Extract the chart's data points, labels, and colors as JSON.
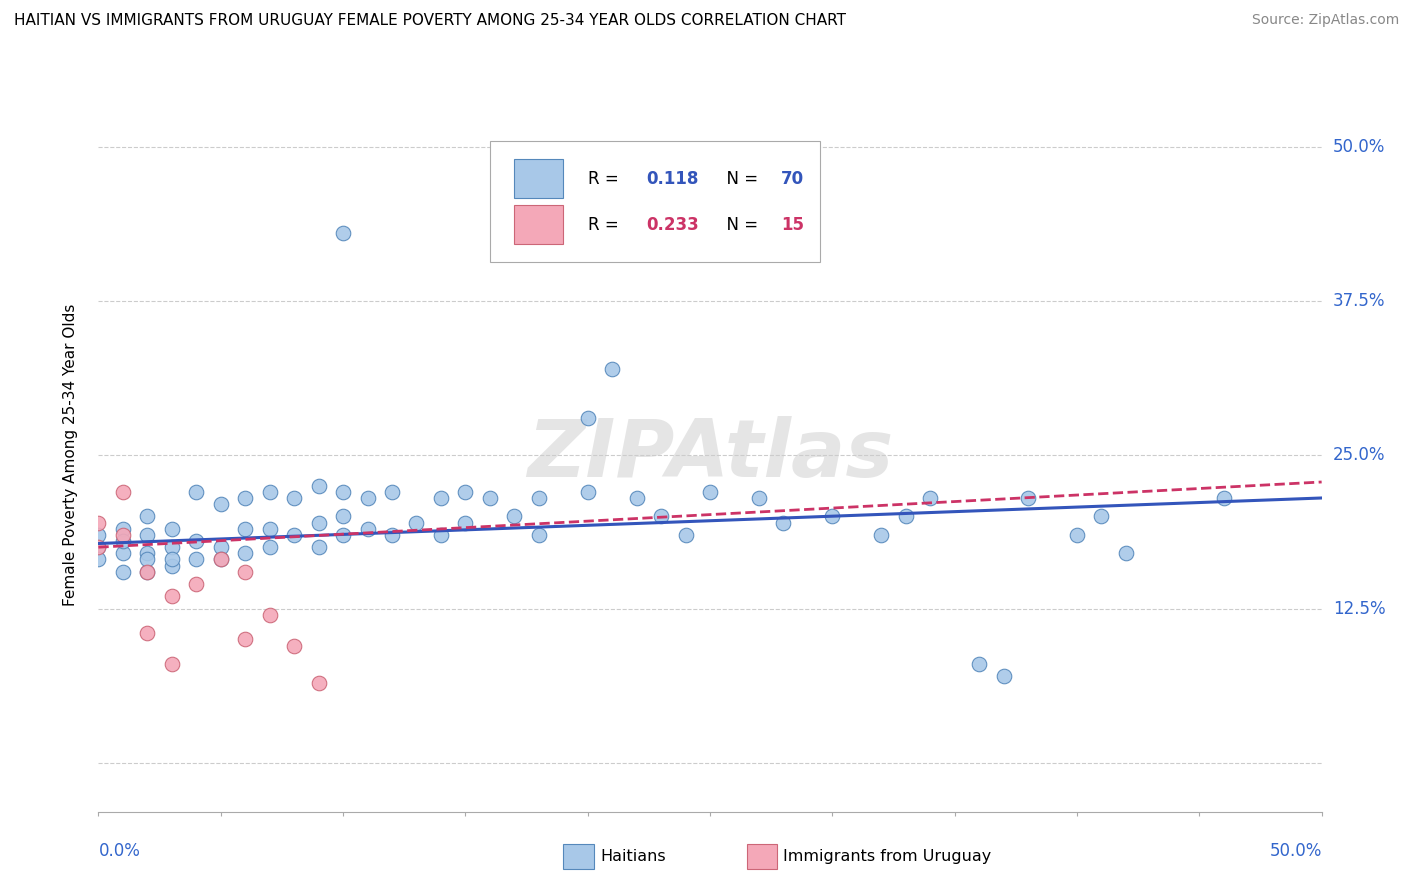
{
  "title": "HAITIAN VS IMMIGRANTS FROM URUGUAY FEMALE POVERTY AMONG 25-34 YEAR OLDS CORRELATION CHART",
  "source": "Source: ZipAtlas.com",
  "ylabel": "Female Poverty Among 25-34 Year Olds",
  "ytick_vals": [
    0.0,
    0.125,
    0.25,
    0.375,
    0.5
  ],
  "ytick_labels": [
    "",
    "12.5%",
    "25.0%",
    "37.5%",
    "50.0%"
  ],
  "xlim": [
    0.0,
    0.5
  ],
  "ylim": [
    -0.04,
    0.54
  ],
  "haiti_color": "#a8c8e8",
  "haiti_edge_color": "#5588bb",
  "uruguay_color": "#f4a8b8",
  "uruguay_edge_color": "#cc6677",
  "trend_haiti_color": "#3355bb",
  "trend_uruguay_color": "#cc3366",
  "haiti_R": 0.118,
  "haiti_N": 70,
  "uruguay_R": 0.233,
  "uruguay_N": 15,
  "haiti_points_x": [
    0.0,
    0.0,
    0.0,
    0.01,
    0.01,
    0.01,
    0.01,
    0.02,
    0.02,
    0.02,
    0.02,
    0.02,
    0.03,
    0.03,
    0.03,
    0.03,
    0.04,
    0.04,
    0.04,
    0.05,
    0.05,
    0.05,
    0.06,
    0.06,
    0.06,
    0.07,
    0.07,
    0.07,
    0.08,
    0.08,
    0.09,
    0.09,
    0.09,
    0.1,
    0.1,
    0.1,
    0.1,
    0.11,
    0.11,
    0.12,
    0.12,
    0.13,
    0.14,
    0.14,
    0.15,
    0.15,
    0.16,
    0.17,
    0.18,
    0.18,
    0.2,
    0.2,
    0.21,
    0.22,
    0.23,
    0.24,
    0.25,
    0.27,
    0.28,
    0.3,
    0.32,
    0.33,
    0.34,
    0.36,
    0.37,
    0.38,
    0.4,
    0.41,
    0.42,
    0.46
  ],
  "haiti_points_y": [
    0.175,
    0.165,
    0.185,
    0.17,
    0.155,
    0.19,
    0.18,
    0.17,
    0.155,
    0.2,
    0.185,
    0.165,
    0.175,
    0.16,
    0.19,
    0.165,
    0.22,
    0.18,
    0.165,
    0.21,
    0.175,
    0.165,
    0.215,
    0.19,
    0.17,
    0.22,
    0.19,
    0.175,
    0.215,
    0.185,
    0.225,
    0.195,
    0.175,
    0.22,
    0.2,
    0.185,
    0.43,
    0.215,
    0.19,
    0.22,
    0.185,
    0.195,
    0.215,
    0.185,
    0.195,
    0.22,
    0.215,
    0.2,
    0.215,
    0.185,
    0.28,
    0.22,
    0.32,
    0.215,
    0.2,
    0.185,
    0.22,
    0.215,
    0.195,
    0.2,
    0.185,
    0.2,
    0.215,
    0.08,
    0.07,
    0.215,
    0.185,
    0.2,
    0.17,
    0.215
  ],
  "uruguay_points_x": [
    0.0,
    0.0,
    0.01,
    0.01,
    0.02,
    0.02,
    0.03,
    0.03,
    0.04,
    0.05,
    0.06,
    0.06,
    0.07,
    0.08,
    0.09
  ],
  "uruguay_points_y": [
    0.195,
    0.175,
    0.185,
    0.22,
    0.105,
    0.155,
    0.135,
    0.08,
    0.145,
    0.165,
    0.155,
    0.1,
    0.12,
    0.095,
    0.065
  ],
  "trend_haiti_x0": 0.0,
  "trend_haiti_y0": 0.178,
  "trend_haiti_x1": 0.5,
  "trend_haiti_y1": 0.215,
  "trend_uruguay_x0": 0.0,
  "trend_uruguay_y0": 0.175,
  "trend_uruguay_x1": 0.5,
  "trend_uruguay_y1": 0.228
}
